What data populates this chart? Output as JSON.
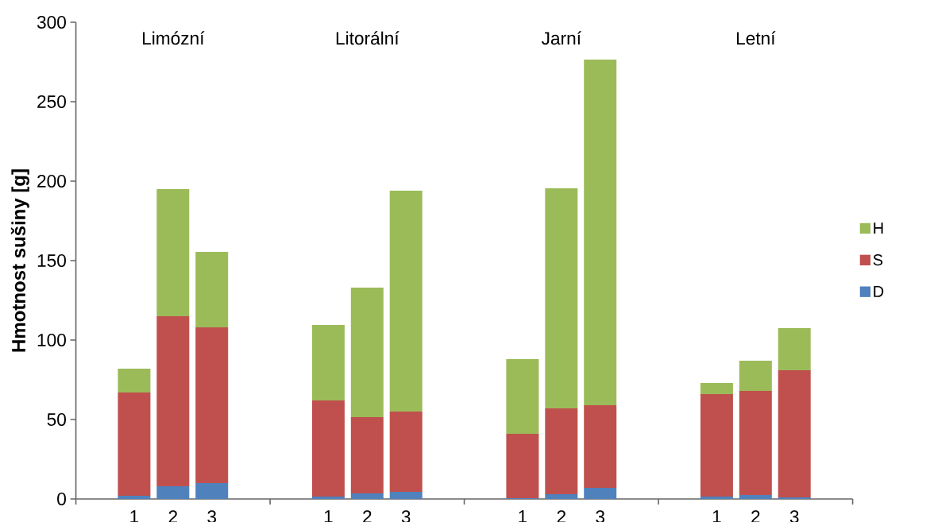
{
  "chart_data": {
    "type": "bar",
    "stacked": true,
    "ylabel": "Hmotnost sušiny [g]",
    "categories": [
      null,
      "1",
      "2",
      "3",
      null,
      null,
      "1",
      "2",
      "3",
      null,
      null,
      "1",
      "2",
      "3",
      null,
      null,
      "1",
      "2",
      "3",
      null
    ],
    "series": [
      {
        "name": "D",
        "color": "#4f81bd",
        "values": [
          null,
          2,
          8,
          10,
          null,
          null,
          1.5,
          3.5,
          4.5,
          null,
          null,
          0.5,
          3,
          7,
          null,
          null,
          1.5,
          2.5,
          1,
          null
        ]
      },
      {
        "name": "S",
        "color": "#c0504d",
        "values": [
          null,
          65,
          107,
          98,
          null,
          null,
          60.5,
          48,
          50.5,
          null,
          null,
          40.5,
          54,
          52,
          null,
          null,
          64.5,
          65.5,
          80,
          null
        ]
      },
      {
        "name": "H",
        "color": "#9bbb59",
        "values": [
          null,
          15,
          80,
          47.5,
          null,
          null,
          47.5,
          81.5,
          139,
          null,
          null,
          47,
          138.5,
          217.5,
          null,
          null,
          7,
          19,
          26.5,
          null
        ]
      }
    ],
    "annotations": [
      "Limózní",
      "Litorální",
      "Jarní",
      "Letní"
    ],
    "ylim": [
      0,
      300
    ],
    "yticks": [
      0,
      50,
      100,
      150,
      200,
      250,
      300
    ],
    "grid": false,
    "legend": "right"
  }
}
